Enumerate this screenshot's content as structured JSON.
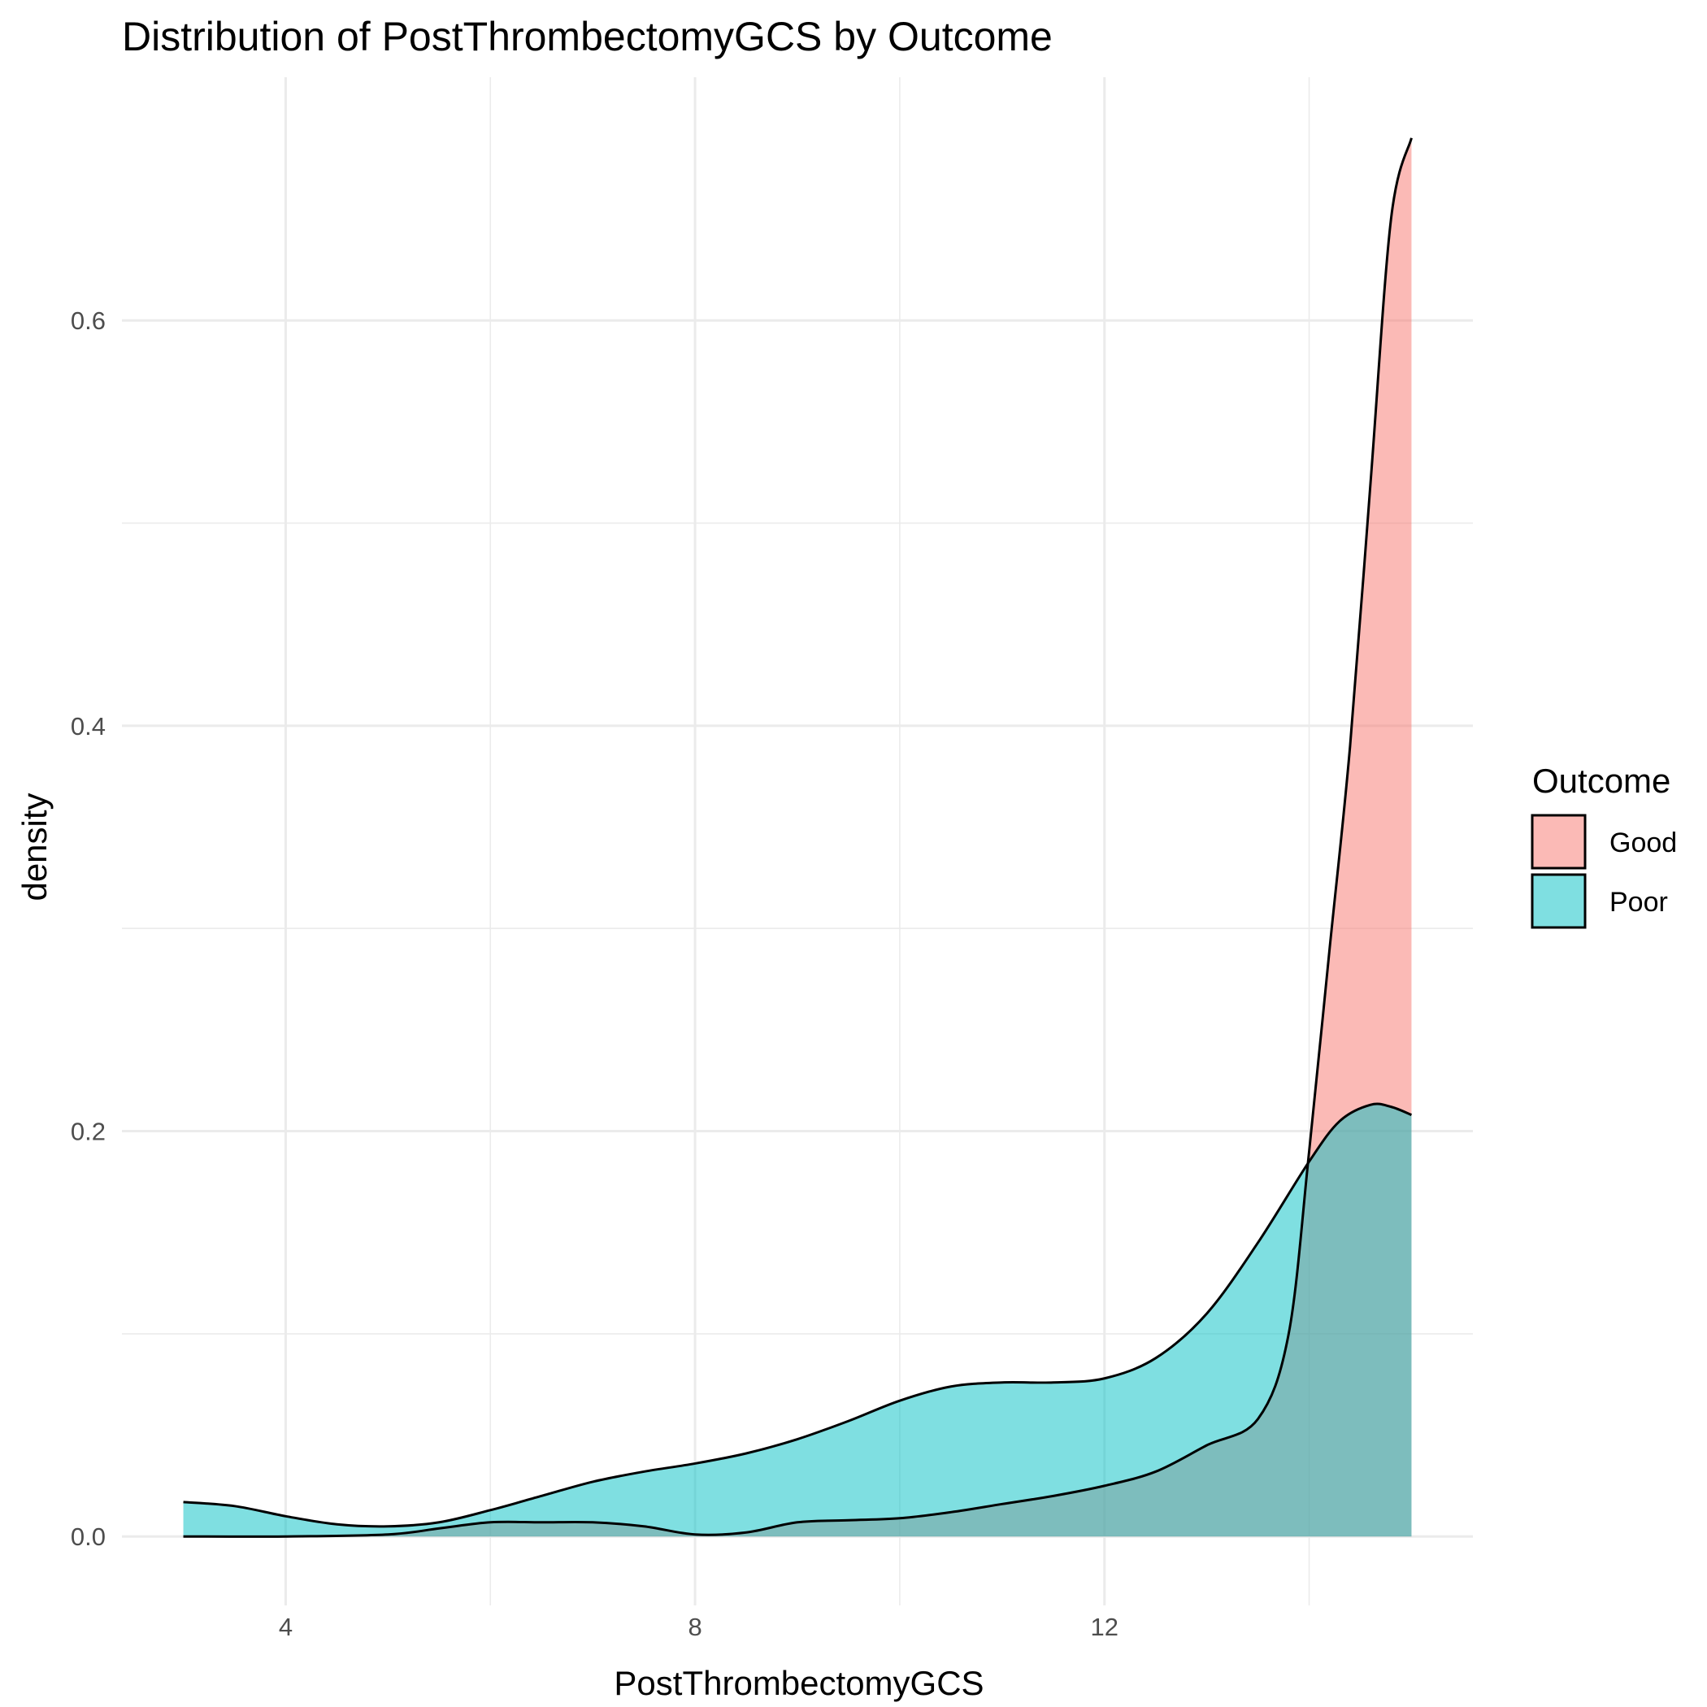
{
  "chart_data": {
    "type": "area",
    "title": "Distribution of PostThrombectomyGCS by Outcome",
    "xlabel": "PostThrombectomyGCS",
    "ylabel": "density",
    "xlim": [
      2.4,
      15.6
    ],
    "ylim": [
      -0.034,
      0.72
    ],
    "x_major_ticks": [
      4,
      8,
      12
    ],
    "x_minor_ticks": [
      6,
      10,
      14
    ],
    "y_major_ticks": [
      0.0,
      0.2,
      0.4,
      0.6
    ],
    "y_minor_ticks": [
      0.1,
      0.3,
      0.5
    ],
    "x_tick_labels": [
      "4",
      "8",
      "12"
    ],
    "y_tick_labels": [
      "0.0",
      "0.2",
      "0.4",
      "0.6"
    ],
    "grid": true,
    "legend_placement": "right",
    "legend_title": "Outcome",
    "series": [
      {
        "name": "Good",
        "fill_color": "#F8766D",
        "fill_opacity": 0.5,
        "x": [
          3,
          4,
          5,
          5.5,
          6,
          6.5,
          7,
          7.5,
          8,
          8.5,
          9,
          9.5,
          10,
          10.5,
          11,
          11.5,
          12,
          12.5,
          13,
          13.5,
          13.8,
          14,
          14.2,
          14.4,
          14.6,
          14.8,
          15
        ],
        "y": [
          0.0,
          0.0,
          0.001,
          0.004,
          0.007,
          0.007,
          0.007,
          0.005,
          0.001,
          0.002,
          0.007,
          0.008,
          0.009,
          0.012,
          0.016,
          0.02,
          0.025,
          0.032,
          0.045,
          0.058,
          0.1,
          0.19,
          0.29,
          0.39,
          0.52,
          0.65,
          0.69
        ]
      },
      {
        "name": "Poor",
        "fill_color": "#00BFC4",
        "fill_opacity": 0.5,
        "x": [
          3,
          3.5,
          4,
          4.5,
          5,
          5.5,
          6,
          6.5,
          7,
          7.5,
          8,
          8.5,
          9,
          9.5,
          10,
          10.5,
          11,
          11.5,
          12,
          12.5,
          13,
          13.5,
          14,
          14.3,
          14.6,
          14.8,
          15
        ],
        "y": [
          0.017,
          0.015,
          0.01,
          0.006,
          0.005,
          0.007,
          0.013,
          0.02,
          0.027,
          0.032,
          0.036,
          0.041,
          0.048,
          0.057,
          0.067,
          0.074,
          0.076,
          0.076,
          0.078,
          0.088,
          0.11,
          0.145,
          0.185,
          0.205,
          0.213,
          0.212,
          0.208
        ]
      }
    ]
  }
}
